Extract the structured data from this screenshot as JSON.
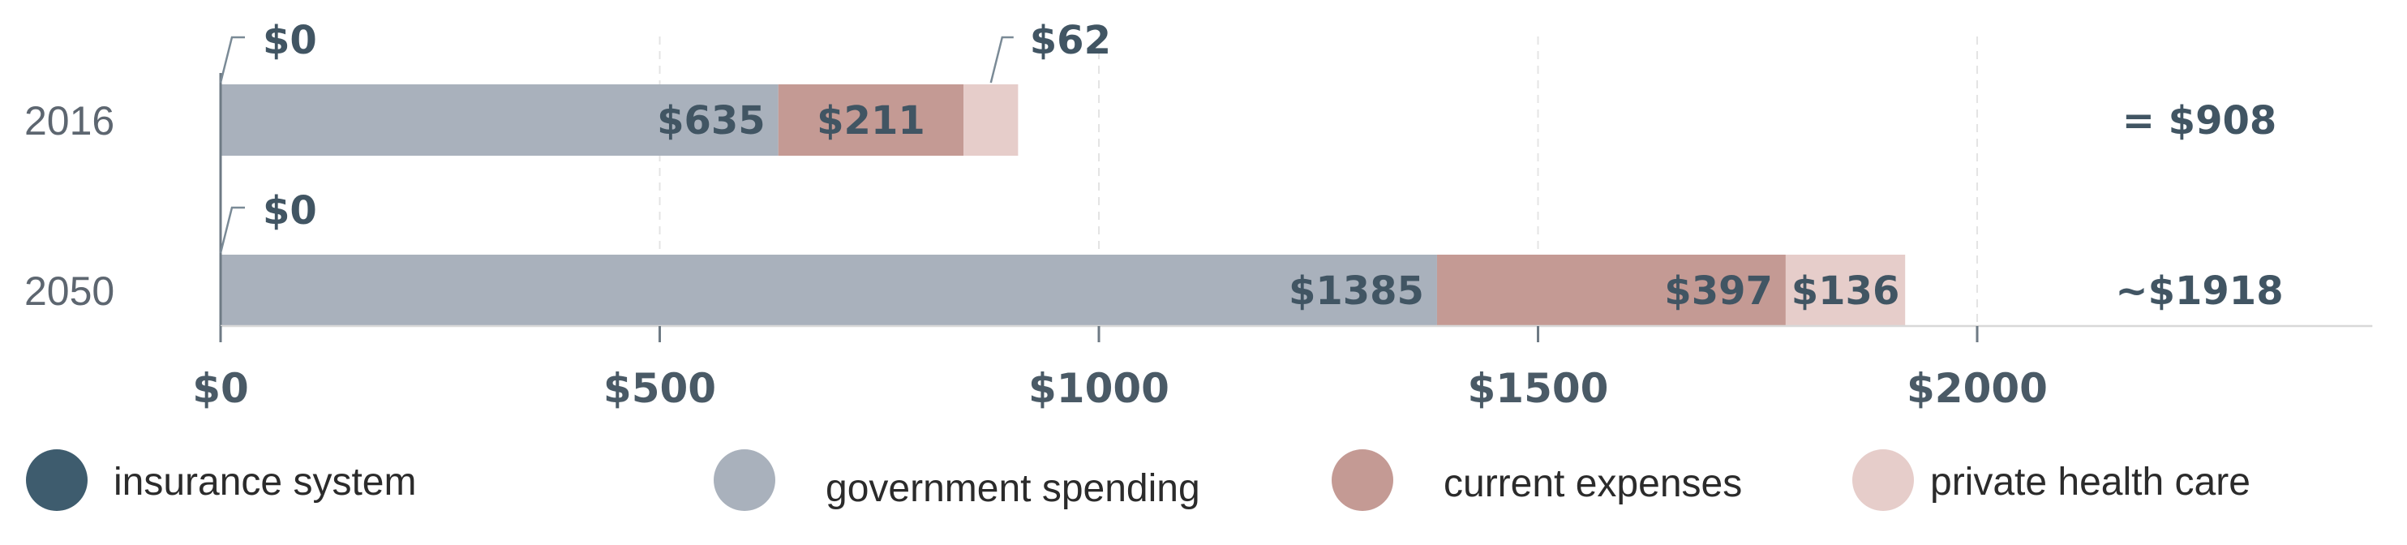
{
  "chart_data": {
    "type": "bar",
    "orientation": "horizontal",
    "stacked": true,
    "categories": [
      "2016",
      "2050"
    ],
    "series": [
      {
        "name": "insurance system",
        "values": [
          0,
          0
        ],
        "color": "#3e5c6e",
        "labels": [
          "$0",
          "$0"
        ]
      },
      {
        "name": "government spending",
        "values": [
          635,
          1385
        ],
        "color": "#a9b1bc",
        "labels": [
          "$635",
          "$1385"
        ]
      },
      {
        "name": "current expenses",
        "values": [
          211,
          397
        ],
        "color": "#c49a94",
        "labels": [
          "$211",
          "$397"
        ]
      },
      {
        "name": "private health care",
        "values": [
          62,
          136
        ],
        "color": "#e6cdca",
        "labels": [
          "$62",
          "$136"
        ]
      }
    ],
    "totals": [
      "= $908",
      "~$1918"
    ],
    "xlim": [
      0,
      2450
    ],
    "xticks": [
      0,
      500,
      1000,
      1500,
      2000
    ],
    "xtick_labels": [
      "$0",
      "$500",
      "$1000",
      "$1500",
      "$2000"
    ],
    "title": "",
    "xlabel": "",
    "ylabel": "",
    "grid": "dashed vertical",
    "legend": "bottom"
  }
}
